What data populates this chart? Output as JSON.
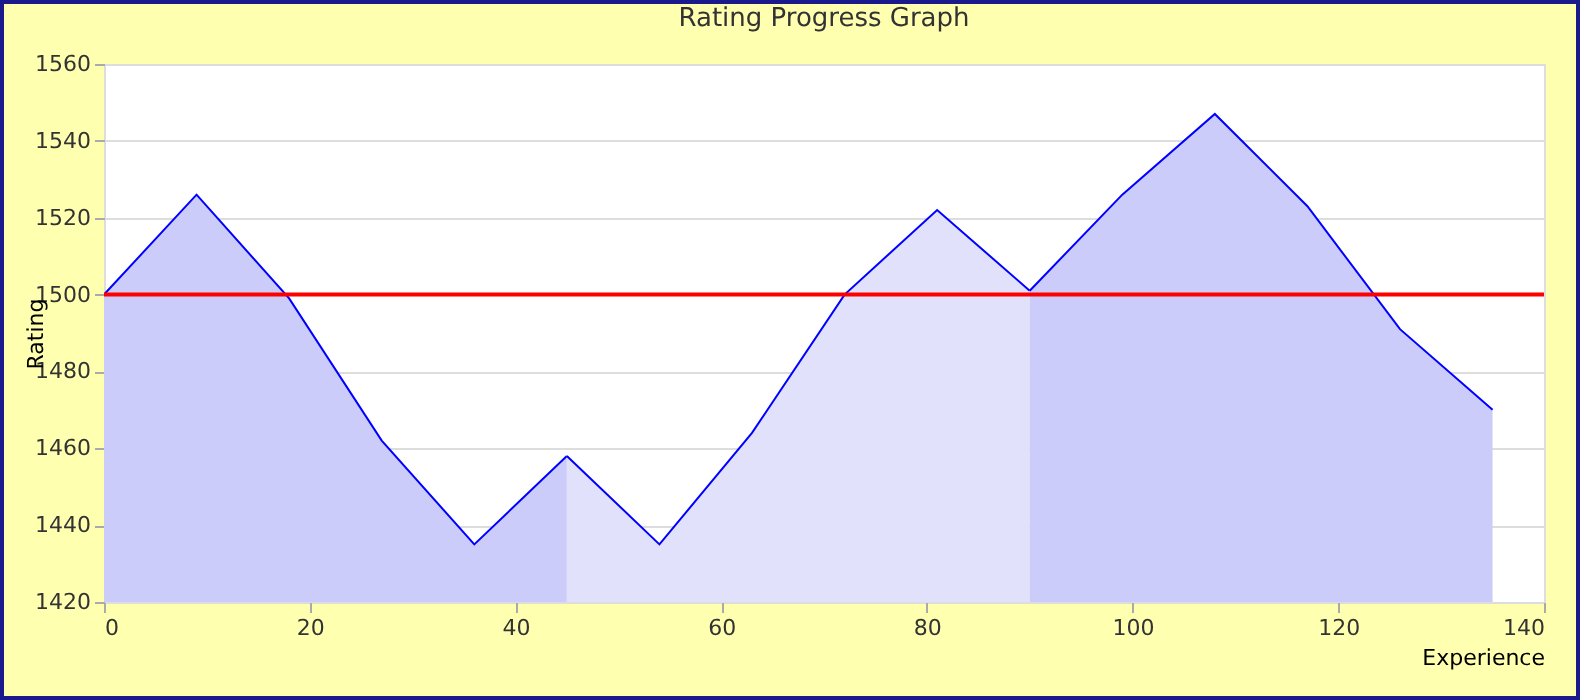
{
  "chart_data": {
    "type": "area",
    "title": "Rating Progress Graph",
    "xlabel": "Experience",
    "ylabel": "Rating",
    "series": [
      {
        "color": "#ccccfa",
        "x": [
          0,
          9,
          18,
          27,
          36,
          45
        ],
        "values": [
          1500,
          1526,
          1499,
          1462,
          1435,
          1458
        ]
      },
      {
        "color": "#e1e1fb",
        "x": [
          45,
          54,
          63,
          72,
          81,
          90
        ],
        "values": [
          1458,
          1435,
          1464,
          1500,
          1522,
          1501
        ]
      },
      {
        "color": "#ccccfa",
        "x": [
          90,
          99,
          108,
          117,
          126,
          135
        ],
        "values": [
          1501,
          1526,
          1547,
          1523,
          1491,
          1470
        ]
      }
    ],
    "xlim": [
      0,
      140
    ],
    "xticks": [
      0,
      20,
      40,
      60,
      80,
      100,
      120,
      140
    ],
    "ylim": [
      1420,
      1560
    ],
    "yticks": [
      1420,
      1440,
      1460,
      1480,
      1500,
      1520,
      1540,
      1560
    ],
    "ref_lines": [
      {
        "axis": "y",
        "value": 1500,
        "color": "#ff0000"
      }
    ],
    "grid": "y"
  }
}
